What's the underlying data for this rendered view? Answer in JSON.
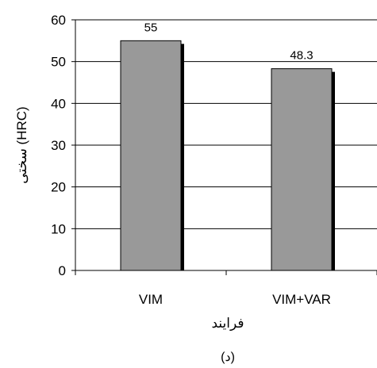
{
  "chart_data": {
    "type": "bar",
    "categories": [
      "VIM",
      "VIM+VAR"
    ],
    "values": [
      55,
      48.3
    ],
    "data_labels": [
      "55",
      "48.3"
    ],
    "ylim": [
      0,
      60
    ],
    "yticks": [
      0,
      10,
      20,
      30,
      40,
      50,
      60
    ],
    "ylabel": "سختی (HRC)",
    "xlabel": "فرایند",
    "caption": "(د)",
    "grid": "horizontal",
    "legend": "none",
    "colors": {
      "bar": "#999999",
      "bar_shadow": "#000000",
      "bar_border": "#000000",
      "axis": "#000000",
      "grid": "#000000"
    }
  }
}
